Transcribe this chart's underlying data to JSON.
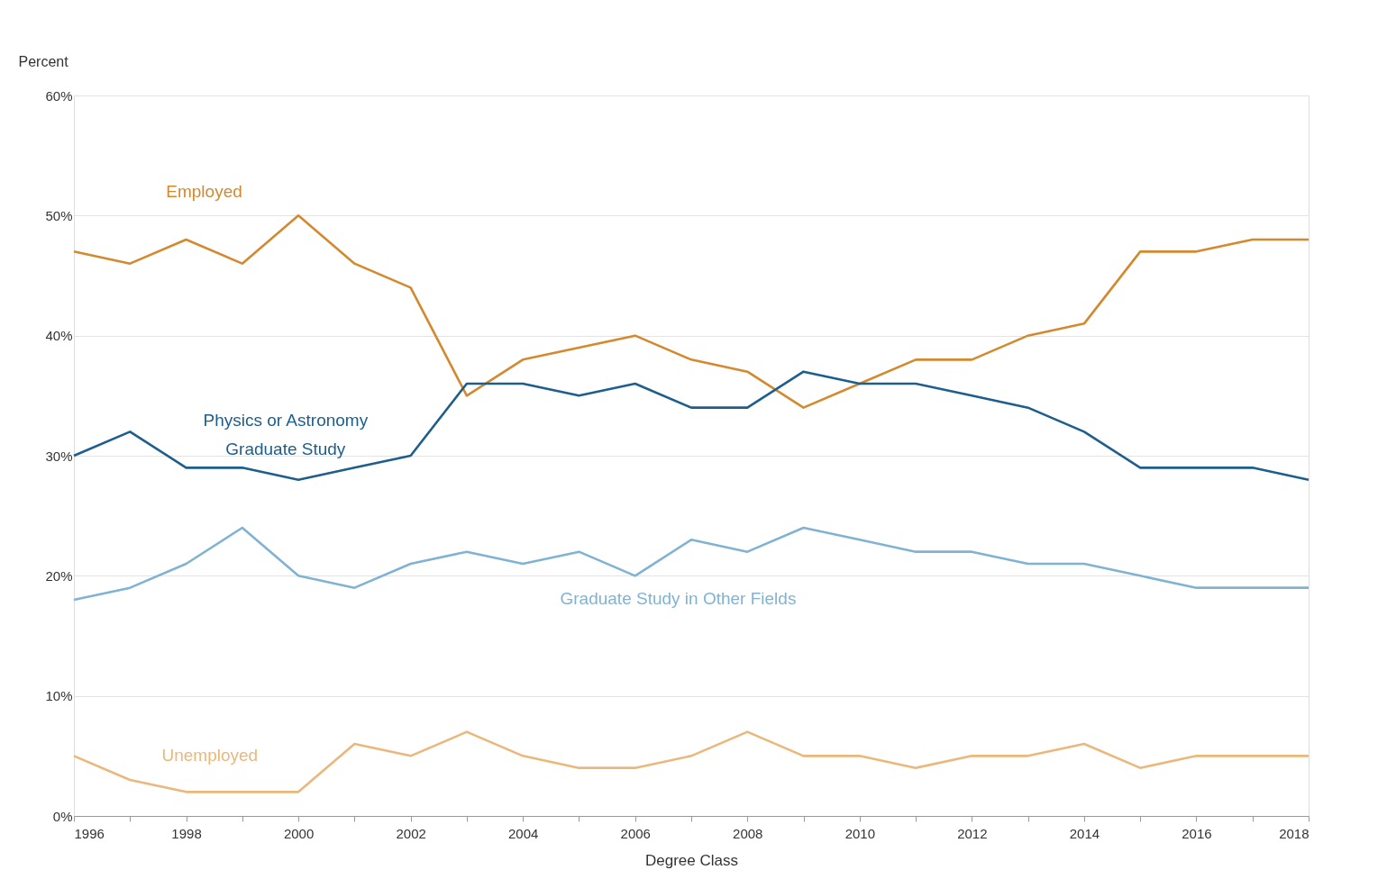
{
  "chart_data": {
    "type": "line",
    "ylabel": "Percent",
    "xlabel": "Degree Class",
    "x": [
      1996,
      1997,
      1998,
      1999,
      2000,
      2001,
      2002,
      2003,
      2004,
      2005,
      2006,
      2007,
      2008,
      2009,
      2010,
      2011,
      2012,
      2013,
      2014,
      2015,
      2016,
      2017,
      2018
    ],
    "xlim": [
      1996,
      2018
    ],
    "xticks": [
      1996,
      {
        "value": 1997,
        "label": null
      },
      1998,
      {
        "value": 1999,
        "label": null
      },
      2000,
      {
        "value": 2001,
        "label": null
      },
      2002,
      {
        "value": 2003,
        "label": null
      },
      2004,
      {
        "value": 2005,
        "label": null
      },
      2006,
      {
        "value": 2007,
        "label": null
      },
      2008,
      {
        "value": 2009,
        "label": null
      },
      2010,
      {
        "value": 2011,
        "label": null
      },
      2012,
      {
        "value": 2013,
        "label": null
      },
      2014,
      {
        "value": 2015,
        "label": null
      },
      2016,
      {
        "value": 2017,
        "label": null
      },
      2018
    ],
    "ylim": [
      0,
      60
    ],
    "yticks": [
      {
        "value": 0,
        "label": "0%"
      },
      {
        "value": 10,
        "label": "10%"
      },
      {
        "value": 20,
        "label": "20%"
      },
      {
        "value": 30,
        "label": "30%"
      },
      {
        "value": 40,
        "label": "40%"
      },
      {
        "value": 50,
        "label": "50%"
      },
      {
        "value": 60,
        "label": "60%"
      }
    ],
    "grid": "y",
    "marker": "none",
    "line_style": "solid",
    "series": [
      {
        "name": "Employed",
        "color": "#d4892e",
        "values": [
          47,
          46,
          48,
          46,
          50,
          46,
          44,
          35,
          38,
          39,
          40,
          38,
          37,
          34,
          36,
          38,
          38,
          40,
          41,
          47,
          47,
          48,
          48
        ]
      },
      {
        "name": "Physics or Astronomy\nGraduate Study",
        "color": "#1d5e8c",
        "values": [
          30,
          32,
          29,
          29,
          28,
          29,
          30,
          36,
          36,
          35,
          36,
          34,
          34,
          37,
          36,
          36,
          35,
          34,
          32,
          29,
          29,
          29,
          28
        ]
      },
      {
        "name": "Graduate Study in Other Fields",
        "color": "#80b3d3",
        "values": [
          18,
          19,
          21,
          24,
          20,
          19,
          21,
          22,
          21,
          22,
          20,
          23,
          22,
          24,
          23,
          22,
          22,
          21,
          21,
          20,
          19,
          19,
          19
        ]
      },
      {
        "name": "Unemployed",
        "color": "#ebb77a",
        "values": [
          5,
          3,
          2,
          2,
          2,
          6,
          5,
          7,
          5,
          4,
          4,
          5,
          7,
          5,
          5,
          4,
          5,
          5,
          6,
          4,
          5,
          5,
          5
        ]
      }
    ]
  }
}
